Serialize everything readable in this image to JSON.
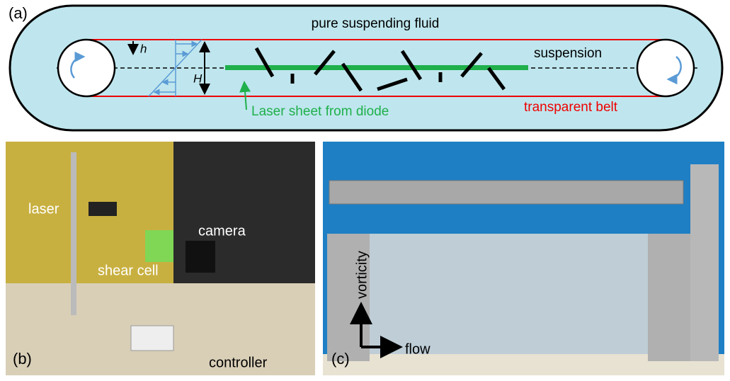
{
  "panel_a": {
    "label": "(a)",
    "fluid": "pure suspending fluid",
    "h": "h",
    "H": "H",
    "suspension": "suspension",
    "laser_sheet": "Laser sheet from diode",
    "belt": "transparent belt"
  },
  "panel_b": {
    "label": "(b)",
    "laser": "laser",
    "camera": "camera",
    "shear_cell": "shear cell",
    "controller": "controller"
  },
  "panel_c": {
    "label": "(c)",
    "vorticity": "vorticity",
    "flow": "flow"
  }
}
